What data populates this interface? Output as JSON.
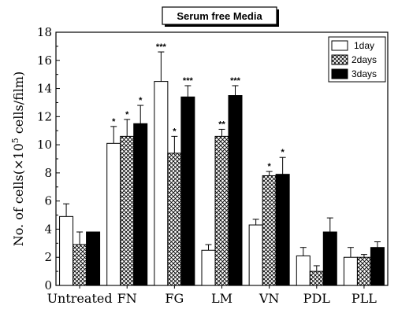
{
  "chart_data": {
    "type": "bar",
    "title": "Serum free Media",
    "ylabel_main": "No. of cells(×10",
    "ylabel_sup": "5",
    "ylabel_tail": " cells/film)",
    "xlabel": "",
    "ylim": [
      0,
      18
    ],
    "yticks": [
      0,
      2,
      4,
      6,
      8,
      10,
      12,
      14,
      16,
      18
    ],
    "categories": [
      "Untreated",
      "FN",
      "FG",
      "LM",
      "VN",
      "PDL",
      "PLL"
    ],
    "series": [
      {
        "name": "1day",
        "fill": "white",
        "values": [
          4.9,
          10.1,
          14.5,
          2.5,
          4.3,
          2.1,
          2.0
        ],
        "errors": [
          0.9,
          1.2,
          2.1,
          0.4,
          0.4,
          0.6,
          0.7
        ],
        "significance": [
          "",
          "*",
          "***",
          "",
          "",
          "",
          ""
        ]
      },
      {
        "name": "2days",
        "fill": "crosshatch",
        "values": [
          2.9,
          10.6,
          9.4,
          10.6,
          7.8,
          1.0,
          2.0
        ],
        "errors": [
          0.9,
          1.2,
          1.2,
          0.5,
          0.3,
          0.4,
          0.2
        ],
        "significance": [
          "",
          "*",
          "*",
          "**",
          "*",
          "",
          ""
        ]
      },
      {
        "name": "3days",
        "fill": "black",
        "values": [
          3.8,
          11.5,
          13.4,
          13.5,
          7.9,
          3.8,
          2.7
        ],
        "errors": [
          0.0,
          1.3,
          0.8,
          0.7,
          1.2,
          1.0,
          0.4
        ],
        "significance": [
          "",
          "*",
          "***",
          "***",
          "*",
          "",
          ""
        ]
      }
    ],
    "legend": {
      "placement": "top-right"
    },
    "grid": false,
    "colors": {
      "bar_outline": "#000000",
      "dark_fill": "#000000",
      "light_fill": "#ffffff"
    }
  }
}
